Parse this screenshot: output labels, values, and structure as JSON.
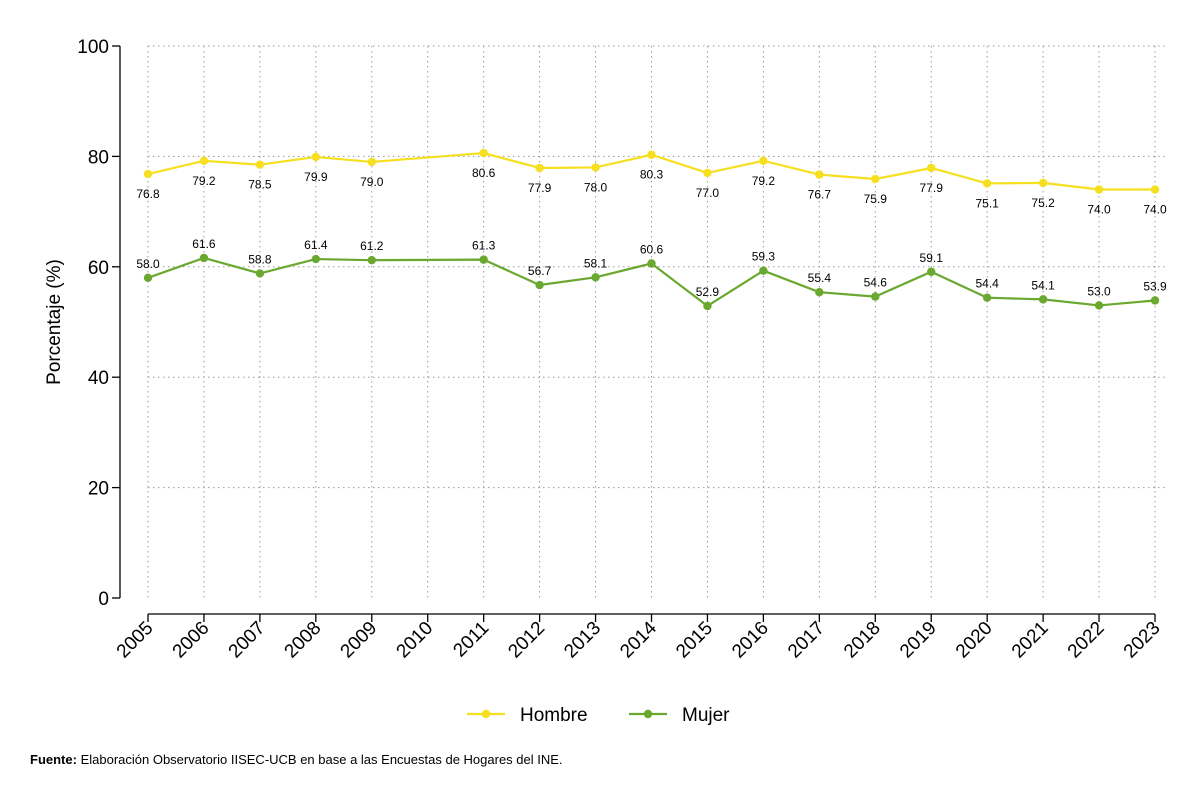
{
  "chart_data": {
    "type": "line",
    "title": "",
    "xlabel": "",
    "ylabel": "Porcentaje (%)",
    "ylim": [
      0,
      100
    ],
    "yticks": [
      0,
      20,
      40,
      60,
      80,
      100
    ],
    "grid": true,
    "legend_position": "bottom",
    "categories": [
      "2005",
      "2006",
      "2007",
      "2008",
      "2009",
      "2010",
      "2011",
      "2012",
      "2013",
      "2014",
      "2015",
      "2016",
      "2017",
      "2018",
      "2019",
      "2020",
      "2021",
      "2022",
      "2023"
    ],
    "series": [
      {
        "name": "Hombre",
        "color": "#f5df1e",
        "label_side": "below",
        "points": [
          {
            "x": "2005",
            "y": 76.8,
            "label": "76.8"
          },
          {
            "x": "2006",
            "y": 79.2,
            "label": "79.2"
          },
          {
            "x": "2007",
            "y": 78.5,
            "label": "78.5"
          },
          {
            "x": "2008",
            "y": 79.9,
            "label": "79.9"
          },
          {
            "x": "2009",
            "y": 79.0,
            "label": "79.0"
          },
          {
            "x": "2011",
            "y": 80.6,
            "label": "80.6"
          },
          {
            "x": "2012",
            "y": 77.9,
            "label": "77.9"
          },
          {
            "x": "2013",
            "y": 78.0,
            "label": "78.0"
          },
          {
            "x": "2014",
            "y": 80.3,
            "label": "80.3"
          },
          {
            "x": "2015",
            "y": 77.0,
            "label": "77.0"
          },
          {
            "x": "2016",
            "y": 79.2,
            "label": "79.2"
          },
          {
            "x": "2017",
            "y": 76.7,
            "label": "76.7"
          },
          {
            "x": "2018",
            "y": 75.9,
            "label": "75.9"
          },
          {
            "x": "2019",
            "y": 77.9,
            "label": "77.9"
          },
          {
            "x": "2020",
            "y": 75.1,
            "label": "75.1"
          },
          {
            "x": "2021",
            "y": 75.2,
            "label": "75.2"
          },
          {
            "x": "2022",
            "y": 74.0,
            "label": "74.0"
          },
          {
            "x": "2023",
            "y": 74.0,
            "label": "74.0"
          }
        ]
      },
      {
        "name": "Mujer",
        "color": "#6aa82f",
        "label_side": "above",
        "points": [
          {
            "x": "2005",
            "y": 58.0,
            "label": "58.0"
          },
          {
            "x": "2006",
            "y": 61.6,
            "label": "61.6"
          },
          {
            "x": "2007",
            "y": 58.8,
            "label": "58.8"
          },
          {
            "x": "2008",
            "y": 61.4,
            "label": "61.4"
          },
          {
            "x": "2009",
            "y": 61.2,
            "label": "61.2"
          },
          {
            "x": "2011",
            "y": 61.3,
            "label": "61.3"
          },
          {
            "x": "2012",
            "y": 56.7,
            "label": "56.7"
          },
          {
            "x": "2013",
            "y": 58.1,
            "label": "58.1"
          },
          {
            "x": "2014",
            "y": 60.6,
            "label": "60.6"
          },
          {
            "x": "2015",
            "y": 52.9,
            "label": "52.9"
          },
          {
            "x": "2016",
            "y": 59.3,
            "label": "59.3"
          },
          {
            "x": "2017",
            "y": 55.4,
            "label": "55.4"
          },
          {
            "x": "2018",
            "y": 54.6,
            "label": "54.6"
          },
          {
            "x": "2019",
            "y": 59.1,
            "label": "59.1"
          },
          {
            "x": "2020",
            "y": 54.4,
            "label": "54.4"
          },
          {
            "x": "2021",
            "y": 54.1,
            "label": "54.1"
          },
          {
            "x": "2022",
            "y": 53.0,
            "label": "53.0"
          },
          {
            "x": "2023",
            "y": 53.9,
            "label": "53.9"
          }
        ]
      }
    ]
  },
  "source": {
    "prefix": "Fuente:",
    "text": " Elaboración Observatorio IISEC-UCB en base a las Encuestas de Hogares del INE."
  }
}
